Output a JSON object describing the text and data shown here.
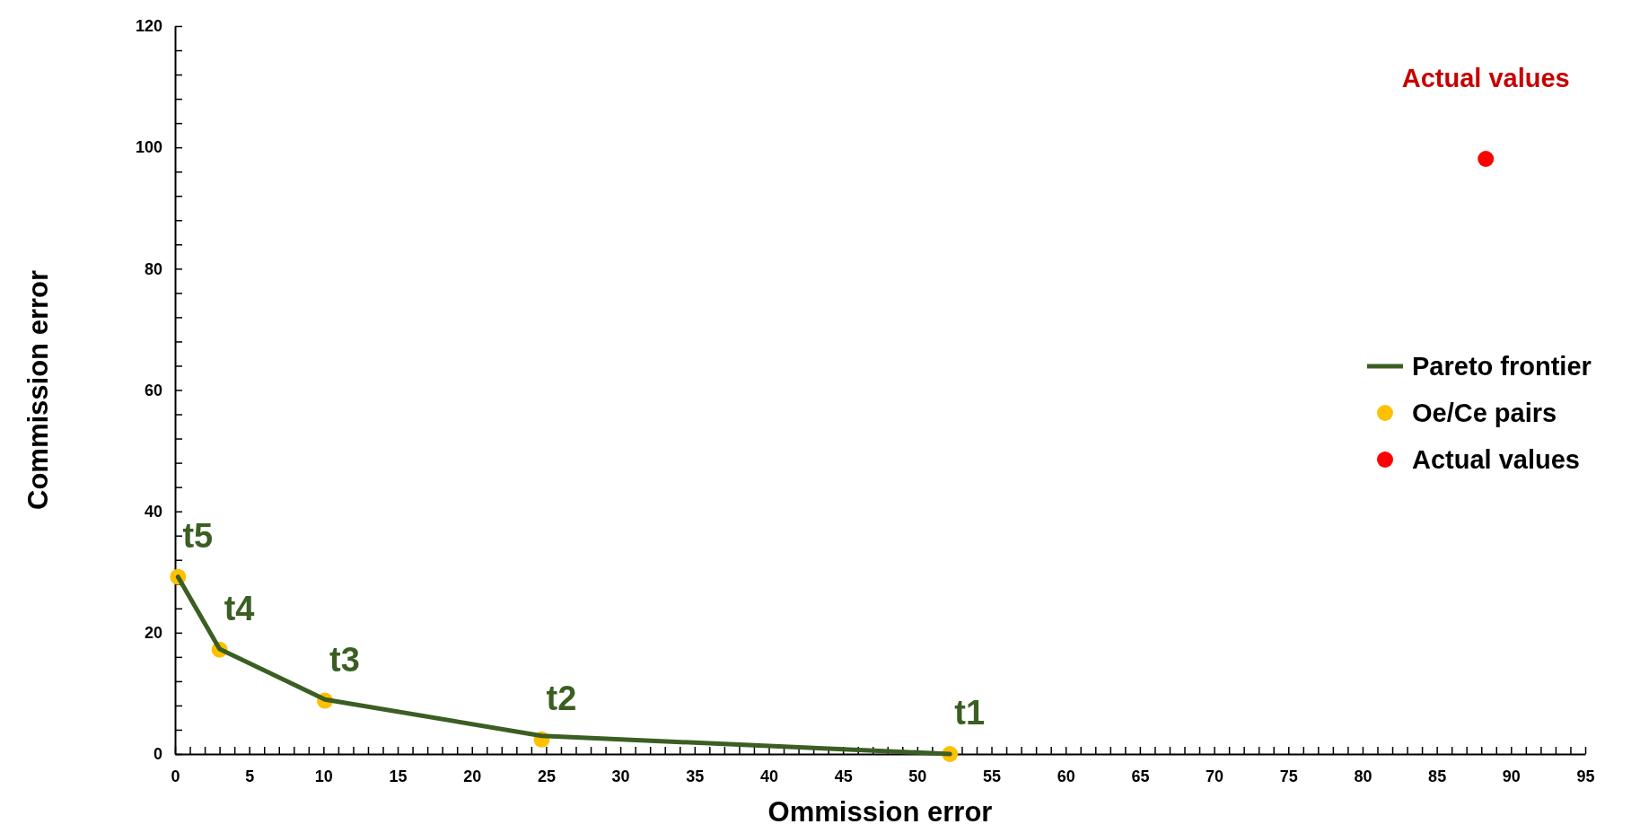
{
  "chart_data": {
    "type": "scatter",
    "xlabel": "Ommission error",
    "ylabel": "Commission error",
    "xlim": [
      0,
      95
    ],
    "ylim": [
      0,
      120
    ],
    "xticks": [
      0,
      {
        "value": 1,
        "label": null
      },
      {
        "value": 2,
        "label": null
      },
      {
        "value": 3,
        "label": null
      },
      {
        "value": 4,
        "label": null
      },
      5,
      {
        "value": 6,
        "label": null
      },
      {
        "value": 7,
        "label": null
      },
      {
        "value": 8,
        "label": null
      },
      {
        "value": 9,
        "label": null
      },
      10,
      {
        "value": 11,
        "label": null
      },
      {
        "value": 12,
        "label": null
      },
      {
        "value": 13,
        "label": null
      },
      {
        "value": 14,
        "label": null
      },
      15,
      {
        "value": 16,
        "label": null
      },
      {
        "value": 17,
        "label": null
      },
      {
        "value": 18,
        "label": null
      },
      {
        "value": 19,
        "label": null
      },
      20,
      {
        "value": 21,
        "label": null
      },
      {
        "value": 22,
        "label": null
      },
      {
        "value": 23,
        "label": null
      },
      {
        "value": 24,
        "label": null
      },
      25,
      {
        "value": 26,
        "label": null
      },
      {
        "value": 27,
        "label": null
      },
      {
        "value": 28,
        "label": null
      },
      {
        "value": 29,
        "label": null
      },
      30,
      {
        "value": 31,
        "label": null
      },
      {
        "value": 32,
        "label": null
      },
      {
        "value": 33,
        "label": null
      },
      {
        "value": 34,
        "label": null
      },
      35,
      {
        "value": 36,
        "label": null
      },
      {
        "value": 37,
        "label": null
      },
      {
        "value": 38,
        "label": null
      },
      {
        "value": 39,
        "label": null
      },
      40,
      {
        "value": 41,
        "label": null
      },
      {
        "value": 42,
        "label": null
      },
      {
        "value": 43,
        "label": null
      },
      {
        "value": 44,
        "label": null
      },
      45,
      {
        "value": 46,
        "label": null
      },
      {
        "value": 47,
        "label": null
      },
      {
        "value": 48,
        "label": null
      },
      {
        "value": 49,
        "label": null
      },
      50,
      {
        "value": 51,
        "label": null
      },
      {
        "value": 52,
        "label": null
      },
      {
        "value": 53,
        "label": null
      },
      {
        "value": 54,
        "label": null
      },
      55,
      {
        "value": 56,
        "label": null
      },
      {
        "value": 57,
        "label": null
      },
      {
        "value": 58,
        "label": null
      },
      {
        "value": 59,
        "label": null
      },
      60,
      {
        "value": 61,
        "label": null
      },
      {
        "value": 62,
        "label": null
      },
      {
        "value": 63,
        "label": null
      },
      {
        "value": 64,
        "label": null
      },
      65,
      {
        "value": 66,
        "label": null
      },
      {
        "value": 67,
        "label": null
      },
      {
        "value": 68,
        "label": null
      },
      {
        "value": 69,
        "label": null
      },
      70,
      {
        "value": 71,
        "label": null
      },
      {
        "value": 72,
        "label": null
      },
      {
        "value": 73,
        "label": null
      },
      {
        "value": 74,
        "label": null
      },
      75,
      {
        "value": 76,
        "label": null
      },
      {
        "value": 77,
        "label": null
      },
      {
        "value": 78,
        "label": null
      },
      {
        "value": 79,
        "label": null
      },
      80,
      {
        "value": 81,
        "label": null
      },
      {
        "value": 82,
        "label": null
      },
      {
        "value": 83,
        "label": null
      },
      {
        "value": 84,
        "label": null
      },
      85,
      {
        "value": 86,
        "label": null
      },
      {
        "value": 87,
        "label": null
      },
      {
        "value": 88,
        "label": null
      },
      {
        "value": 89,
        "label": null
      },
      90,
      {
        "value": 91,
        "label": null
      },
      {
        "value": 92,
        "label": null
      },
      {
        "value": 93,
        "label": null
      },
      {
        "value": 94,
        "label": null
      },
      95
    ],
    "yticks": [
      0,
      {
        "value": 4,
        "label": null
      },
      {
        "value": 8,
        "label": null
      },
      {
        "value": 12,
        "label": null
      },
      {
        "value": 16,
        "label": null
      },
      20,
      {
        "value": 24,
        "label": null
      },
      {
        "value": 28,
        "label": null
      },
      {
        "value": 32,
        "label": null
      },
      {
        "value": 36,
        "label": null
      },
      40,
      {
        "value": 44,
        "label": null
      },
      {
        "value": 48,
        "label": null
      },
      {
        "value": 52,
        "label": null
      },
      {
        "value": 56,
        "label": null
      },
      60,
      {
        "value": 64,
        "label": null
      },
      {
        "value": 68,
        "label": null
      },
      {
        "value": 72,
        "label": null
      },
      {
        "value": 76,
        "label": null
      },
      80,
      {
        "value": 84,
        "label": null
      },
      {
        "value": 88,
        "label": null
      },
      {
        "value": 92,
        "label": null
      },
      {
        "value": 96,
        "label": null
      },
      100,
      {
        "value": 104,
        "label": null
      },
      {
        "value": 108,
        "label": null
      },
      {
        "value": 112,
        "label": null
      },
      {
        "value": 116,
        "label": null
      },
      120
    ],
    "grid": false,
    "legend": "right",
    "series": [
      {
        "name": "Pareto frontier",
        "type": "line",
        "color": "#3b5e23",
        "marker": "none",
        "line_style": "solid",
        "x": [
          0.2,
          3,
          10.1,
          24.7,
          52.2
        ],
        "values": [
          29.2,
          17.3,
          9,
          3,
          0
        ]
      },
      {
        "name": "Oe/Ce pairs",
        "color": "#ffc000",
        "marker": "circle",
        "x": [
          0.2,
          3,
          10.1,
          24.7,
          52.2
        ],
        "values": [
          29.2,
          17.2,
          8.8,
          2.4,
          0
        ]
      },
      {
        "name": "Actual values",
        "color": "#ff0000",
        "marker": "circle",
        "x": [
          88.3
        ],
        "values": [
          98.1
        ]
      }
    ],
    "annotations": [
      {
        "text": "t5",
        "x": 0.2,
        "y": 29.2
      },
      {
        "text": "t4",
        "x": 3,
        "y": 17.2
      },
      {
        "text": "t3",
        "x": 10.1,
        "y": 8.8
      },
      {
        "text": "t2",
        "x": 24.7,
        "y": 2.4
      },
      {
        "text": "t1",
        "x": 52.2,
        "y": 0
      },
      {
        "text": "Actual values",
        "x": 88.3,
        "y": 98.1
      }
    ]
  }
}
